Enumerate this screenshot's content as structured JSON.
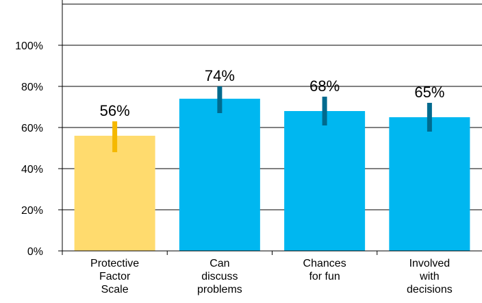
{
  "chart_data": {
    "type": "bar",
    "title": "",
    "xlabel": "",
    "ylabel": "",
    "categories": [
      [
        "Protective",
        "Factor",
        "Scale"
      ],
      [
        "Can",
        "discuss",
        "problems"
      ],
      [
        "Chances",
        "for fun"
      ],
      [
        "Involved",
        "with",
        "decisions"
      ]
    ],
    "values": [
      56,
      74,
      68,
      65
    ],
    "value_labels": [
      "56%",
      "74%",
      "68%",
      "65%"
    ],
    "error_low": [
      48,
      67,
      61,
      58
    ],
    "error_high": [
      63,
      80,
      75,
      72
    ],
    "ylim": [
      0,
      120
    ],
    "yticks": [
      0,
      20,
      40,
      60,
      80,
      100
    ],
    "ytick_labels": [
      "0%",
      "20%",
      "40%",
      "60%",
      "80%",
      "100%"
    ],
    "grid": true,
    "colors": {
      "bars": [
        "#FFDB6E",
        "#00B7F0",
        "#00B7F0",
        "#00B7F0"
      ],
      "error_bars": [
        "#F5B800",
        "#006A8E",
        "#006A8E",
        "#006A8E"
      ],
      "gridline": "#000000",
      "axis": "#000000"
    }
  }
}
